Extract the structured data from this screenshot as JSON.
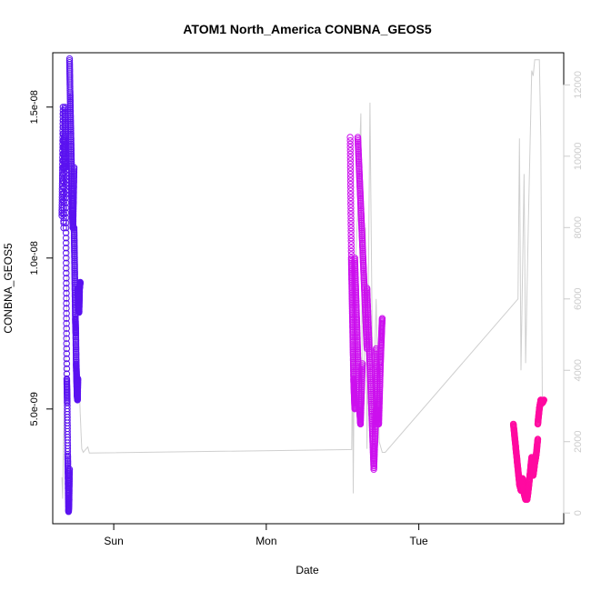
{
  "chart_data": {
    "type": "scatter",
    "title": "ATOM1 North_America CONBNA_GEOS5",
    "xlabel": "Date",
    "ylabel": "CONBNA_GEOS5",
    "x_axis": {
      "unit": "days",
      "range": [
        -0.4,
        2.95
      ],
      "ticks": [
        {
          "value": 0,
          "label": "Sun"
        },
        {
          "value": 1,
          "label": "Mon"
        },
        {
          "value": 2,
          "label": "Tue"
        }
      ]
    },
    "y_left": {
      "range": [
        1.2e-09,
        1.68e-08
      ],
      "ticks": [
        {
          "value": 5e-09,
          "label": "5.0e-09"
        },
        {
          "value": 1e-08,
          "label": "1.0e-08"
        },
        {
          "value": 1.5e-08,
          "label": "1.5e-08"
        }
      ]
    },
    "y_right": {
      "range": [
        -300,
        12900
      ],
      "ticks": [
        {
          "value": 0,
          "label": "0"
        },
        {
          "value": 2000,
          "label": "2000"
        },
        {
          "value": 4000,
          "label": "4000"
        },
        {
          "value": 6000,
          "label": "6000"
        },
        {
          "value": 8000,
          "label": "8000"
        },
        {
          "value": 10000,
          "label": "10000"
        },
        {
          "value": 12000,
          "label": "12000"
        }
      ],
      "color": "#cccccc"
    },
    "grid": false,
    "altitude_line": [
      [
        -0.34,
        1000
      ],
      [
        -0.335,
        400
      ],
      [
        -0.33,
        1800
      ],
      [
        -0.32,
        3500
      ],
      [
        -0.31,
        5500
      ],
      [
        -0.3,
        7800
      ],
      [
        -0.29,
        9000
      ],
      [
        -0.28,
        10300
      ],
      [
        -0.27,
        9800
      ],
      [
        -0.26,
        8200
      ],
      [
        -0.25,
        7600
      ],
      [
        -0.24,
        6800
      ],
      [
        -0.23,
        4000
      ],
      [
        -0.22,
        2800
      ],
      [
        -0.21,
        1800
      ],
      [
        -0.2,
        1700
      ],
      [
        -0.19,
        1750
      ],
      [
        -0.18,
        1800
      ],
      [
        -0.17,
        1850
      ],
      [
        -0.16,
        1680
      ],
      [
        1.56,
        1780
      ],
      [
        1.565,
        4500
      ],
      [
        1.57,
        550
      ],
      [
        1.58,
        6500
      ],
      [
        1.6,
        8500
      ],
      [
        1.62,
        11200
      ],
      [
        1.63,
        2500
      ],
      [
        1.64,
        3500
      ],
      [
        1.65,
        8000
      ],
      [
        1.66,
        1800
      ],
      [
        1.68,
        11500
      ],
      [
        1.7,
        2500
      ],
      [
        1.72,
        6000
      ],
      [
        1.74,
        2000
      ],
      [
        1.76,
        1700
      ],
      [
        1.78,
        1700
      ],
      [
        2.65,
        6000
      ],
      [
        2.66,
        10500
      ],
      [
        2.67,
        4000
      ],
      [
        2.69,
        9500
      ],
      [
        2.7,
        4200
      ],
      [
        2.72,
        8500
      ],
      [
        2.74,
        12400
      ],
      [
        2.75,
        12250
      ],
      [
        2.76,
        12700
      ],
      [
        2.79,
        12700
      ],
      [
        2.8,
        10500
      ],
      [
        2.81,
        3000
      ]
    ],
    "series": [
      {
        "color": "#5a12f0",
        "segments": [
          {
            "x0": -0.34,
            "x1": -0.32,
            "yvals": [
              1.14e-08,
              1.3e-08,
              1.5e-08,
              1.1e-08,
              1.4e-08,
              1.3e-08
            ]
          },
          {
            "x0": -0.32,
            "x1": -0.29,
            "yvals": [
              1.5e-08,
              1.4e-08,
              1.2e-08,
              9e-09,
              6e-09,
              5.2e-09,
              3.5e-09,
              2.5e-09,
              1.6e-09,
              2e-09,
              3e-09
            ]
          },
          {
            "x0": -0.29,
            "x1": -0.26,
            "yvals": [
              1.66e-08,
              1.55e-08,
              1.45e-08,
              1.35e-08,
              1.25e-08,
              1.15e-08,
              1.1e-08,
              1.2e-08,
              1.3e-08
            ]
          },
          {
            "x0": -0.26,
            "x1": -0.235,
            "yvals": [
              1.1e-08,
              1e-08,
              9e-09,
              8e-09,
              7.5e-09,
              6.5e-09,
              6e-09,
              5.5e-09,
              5.3e-09,
              6e-09
            ]
          },
          {
            "x0": -0.235,
            "x1": -0.22,
            "yvals": [
              9e-09,
              8.5e-09,
              8.2e-09,
              9e-09,
              9.2e-09
            ]
          }
        ]
      },
      {
        "color": "#cc10ee",
        "segments": [
          {
            "x0": 1.55,
            "x1": 1.58,
            "yvals": [
              1.4e-08,
              1.2e-08,
              1e-08,
              9e-09,
              8e-09,
              7e-09,
              6e-09,
              5.5e-09,
              5e-09
            ]
          },
          {
            "x0": 1.58,
            "x1": 1.63,
            "yvals": [
              1e-08,
              9e-09,
              8e-09,
              7e-09,
              6e-09,
              5e-09,
              4.5e-09,
              5.5e-09,
              6.5e-09
            ]
          },
          {
            "x0": 1.6,
            "x1": 1.66,
            "yvals": [
              1.4e-08,
              1.3e-08,
              1.2e-08,
              1.1e-08,
              1e-08,
              9e-09,
              8e-09,
              7e-09
            ]
          },
          {
            "x0": 1.66,
            "x1": 1.72,
            "yvals": [
              9e-09,
              8e-09,
              7e-09,
              6e-09,
              5e-09,
              4e-09,
              3e-09,
              4e-09,
              5e-09
            ]
          },
          {
            "x0": 1.72,
            "x1": 1.76,
            "yvals": [
              7e-09,
              6e-09,
              5e-09,
              4.5e-09,
              5.5e-09,
              6.5e-09,
              7.3e-09,
              8e-09
            ]
          }
        ]
      },
      {
        "color": "#ff0aa0",
        "segments": [
          {
            "x0": 2.62,
            "x1": 2.7,
            "yvals": [
              4.5e-09,
              4e-09,
              3.5e-09,
              3e-09,
              2.5e-09,
              2.3e-09,
              2.7e-09,
              2.2e-09,
              2e-09
            ]
          },
          {
            "x0": 2.7,
            "x1": 2.78,
            "yvals": [
              2.2e-09,
              2e-09,
              2.4e-09,
              2.9e-09,
              3.4e-09,
              2.8e-09,
              3.2e-09,
              3.5e-09,
              4e-09
            ]
          },
          {
            "x0": 2.78,
            "x1": 2.82,
            "yvals": [
              4.5e-09,
              5e-09,
              5.3e-09,
              5.2e-09,
              5.3e-09
            ]
          }
        ]
      }
    ]
  }
}
